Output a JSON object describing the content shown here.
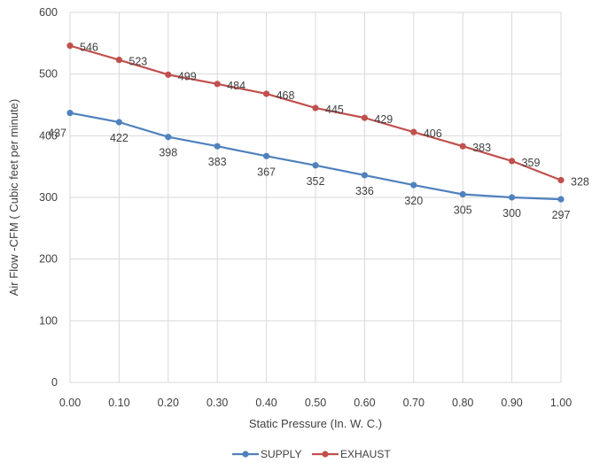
{
  "chart_data": {
    "type": "line",
    "title": "",
    "xlabel": "Static Pressure (In. W. C.)",
    "ylabel": "Air Flow -CFM ( Cubic feet per minute)",
    "x": [
      0.0,
      0.1,
      0.2,
      0.3,
      0.4,
      0.5,
      0.6,
      0.7,
      0.8,
      0.9,
      1.0
    ],
    "x_tick_labels": [
      "0.00",
      "0.10",
      "0.20",
      "0.30",
      "0.40",
      "0.50",
      "0.60",
      "0.70",
      "0.80",
      "0.90",
      "1.00"
    ],
    "y_ticks": [
      0,
      100,
      200,
      300,
      400,
      500,
      600
    ],
    "xlim": [
      0,
      1
    ],
    "ylim": [
      0,
      600
    ],
    "grid": "horizontal and vertical",
    "legend_position": "bottom",
    "series": [
      {
        "name": "SUPPLY",
        "color": "#4f81bd",
        "values": [
          437,
          422,
          398,
          383,
          367,
          352,
          336,
          320,
          305,
          300,
          297
        ],
        "data_labels": [
          "437",
          "422",
          "398",
          "383",
          "367",
          "352",
          "336",
          "320",
          "305",
          "300",
          "297"
        ]
      },
      {
        "name": "EXHAUST",
        "color": "#c0504d",
        "values": [
          546,
          523,
          499,
          484,
          468,
          445,
          429,
          406,
          383,
          359,
          328
        ],
        "data_labels": [
          "546",
          "523",
          "499",
          "484",
          "468",
          "445",
          "429",
          "406",
          "383",
          "359",
          "328"
        ]
      }
    ]
  }
}
